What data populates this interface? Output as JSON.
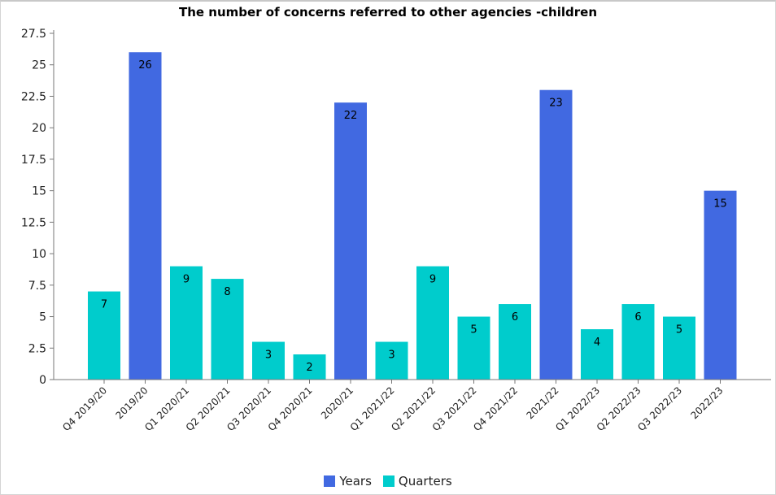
{
  "chart_data": {
    "type": "bar",
    "title": "The number of concerns referred to other agencies -children",
    "xlabel": "",
    "ylabel": "",
    "ylim": [
      0,
      27.5
    ],
    "yticks": [
      "0",
      "2.5",
      "5",
      "7.5",
      "10",
      "12.5",
      "15",
      "17.5",
      "20",
      "22.5",
      "25",
      "27.5"
    ],
    "grid": false,
    "legend_position": "bottom",
    "categories": [
      "Q4 2019/20",
      "2019/20",
      "Q1 2020/21",
      "Q2 2020/21",
      "Q3 2020/21",
      "Q4 2020/21",
      "2020/21",
      "Q1 2021/22",
      "Q2 2021/22",
      "Q3 2021/22",
      "Q4 2021/22",
      "2021/22",
      "Q1 2022/23",
      "Q2 2022/23",
      "Q3 2022/23",
      "2022/23"
    ],
    "values": [
      7,
      26,
      9,
      8,
      3,
      2,
      22,
      3,
      9,
      5,
      6,
      23,
      4,
      6,
      5,
      15
    ],
    "bar_series": [
      "Quarters",
      "Years",
      "Quarters",
      "Quarters",
      "Quarters",
      "Quarters",
      "Years",
      "Quarters",
      "Quarters",
      "Quarters",
      "Quarters",
      "Years",
      "Quarters",
      "Quarters",
      "Quarters",
      "Years"
    ],
    "series": [
      {
        "name": "Years",
        "color": "#4169e1"
      },
      {
        "name": "Quarters",
        "color": "#00cccc"
      }
    ]
  }
}
